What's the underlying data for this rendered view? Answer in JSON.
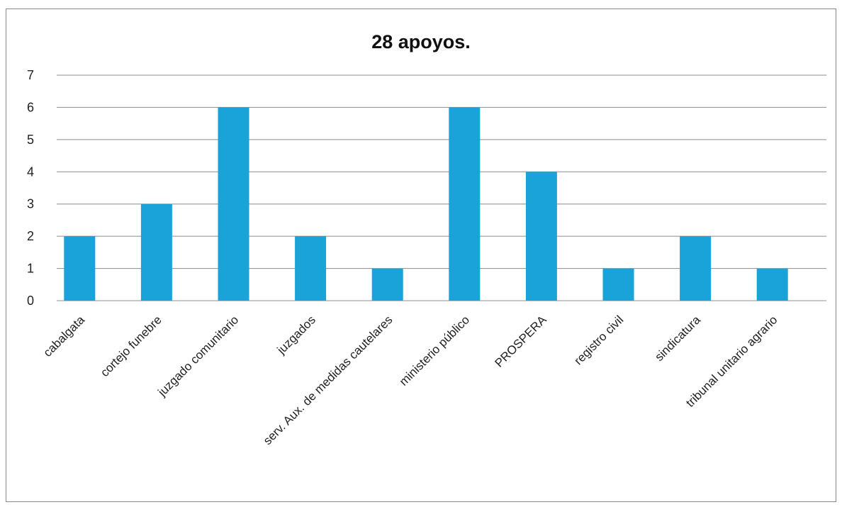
{
  "chart_data": {
    "type": "bar",
    "title": "28 apoyos.",
    "xlabel": "",
    "ylabel": "",
    "ylim": [
      0,
      7
    ],
    "yticks": [
      "0",
      "1",
      "2",
      "3",
      "4",
      "5",
      "6",
      "7"
    ],
    "grid": true,
    "legend": "none",
    "bar_color": "#1aa3d9",
    "categories": [
      "cabalgata",
      "cortejo funebre",
      "juzgado comunitario",
      "juzgados",
      "serv. Aux. de medidas cautelares",
      "ministerio público",
      "PROSPERA",
      "registro civil",
      "sindicatura",
      "tribunal unitario agrario"
    ],
    "values": [
      2,
      3,
      6,
      2,
      1,
      6,
      4,
      1,
      2,
      1
    ]
  }
}
